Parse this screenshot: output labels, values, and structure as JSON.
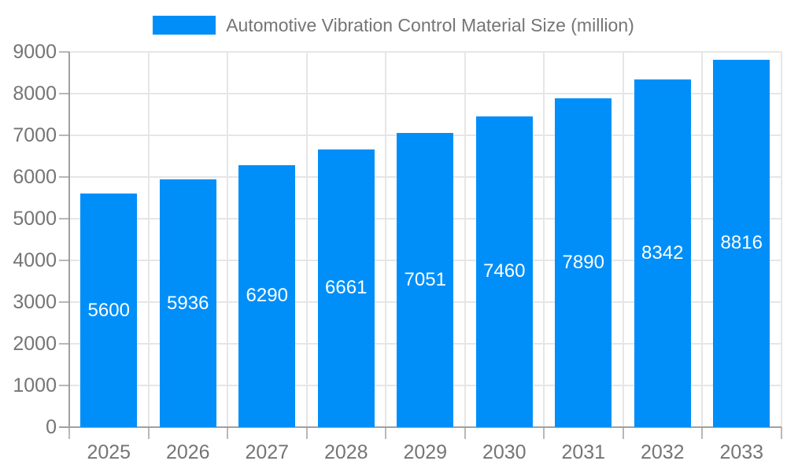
{
  "legend": {
    "label": "Automotive Vibration Control Material Size (million)"
  },
  "chart_data": {
    "type": "bar",
    "title": "Automotive Vibration Control Material Size (million)",
    "categories": [
      "2025",
      "2026",
      "2027",
      "2028",
      "2029",
      "2030",
      "2031",
      "2032",
      "2033"
    ],
    "values": [
      5600,
      5936,
      6290,
      6661,
      7051,
      7460,
      7890,
      8342,
      8816
    ],
    "series": [
      {
        "name": "Automotive Vibration Control Material Size (million)",
        "values": [
          5600,
          5936,
          6290,
          6661,
          7051,
          7460,
          7890,
          8342,
          8816
        ]
      }
    ],
    "xlabel": "",
    "ylabel": "",
    "ylim": [
      0,
      9000
    ],
    "ytick_step": 1000,
    "ytick_labels": [
      "0",
      "1000",
      "2000",
      "3000",
      "4000",
      "5000",
      "6000",
      "7000",
      "8000",
      "9000"
    ],
    "grid": true,
    "legend_position": "top-center",
    "value_labels": "inside-center",
    "colors": {
      "bar": "#008FF8",
      "bar_label": "#FFFFFF",
      "axis_text": "#757575",
      "title_text": "#757575",
      "gridline": "#E6E6E6",
      "axis_line": "#A0A0A0",
      "tick": "#B8B8B8",
      "background": "#FFFFFF"
    }
  }
}
